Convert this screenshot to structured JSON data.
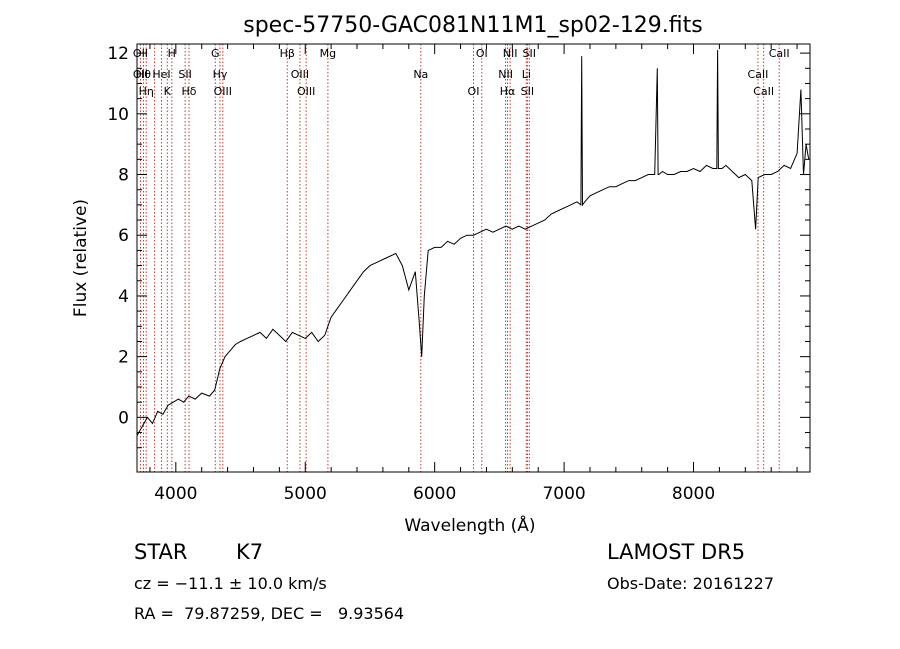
{
  "chart_data": {
    "type": "line",
    "title": "spec-57750-GAC081N11M1_sp02-129.fits",
    "xlabel": "Wavelength (Å)",
    "ylabel": "Flux (relative)",
    "xlim": [
      3700,
      8900
    ],
    "ylim": [
      -1.8,
      12.3
    ],
    "xticks": [
      4000,
      5000,
      6000,
      7000,
      8000
    ],
    "yticks": [
      0,
      2,
      4,
      6,
      8,
      10,
      12
    ],
    "grid": false,
    "series": [
      {
        "x": [
          3700,
          3740,
          3780,
          3820,
          3860,
          3900,
          3940,
          3980,
          4020,
          4060,
          4100,
          4150,
          4200,
          4260,
          4300,
          4340,
          4380,
          4420,
          4460,
          4500,
          4550,
          4600,
          4650,
          4700,
          4750,
          4800,
          4850,
          4900,
          4950,
          5000,
          5050,
          5100,
          5150,
          5200,
          5250,
          5300,
          5350,
          5400,
          5450,
          5500,
          5550,
          5600,
          5650,
          5700,
          5750,
          5800,
          5850,
          5880,
          5900,
          5920,
          5950,
          6000,
          6050,
          6100,
          6150,
          6200,
          6250,
          6300,
          6350,
          6400,
          6450,
          6500,
          6550,
          6600,
          6650,
          6700,
          6750,
          6800,
          6850,
          6900,
          6950,
          7000,
          7050,
          7100,
          7130,
          7136,
          7142,
          7160,
          7200,
          7250,
          7300,
          7350,
          7400,
          7450,
          7500,
          7550,
          7600,
          7650,
          7700,
          7720,
          7726,
          7732,
          7760,
          7800,
          7850,
          7900,
          7950,
          8000,
          8050,
          8100,
          8150,
          8180,
          8186,
          8192,
          8220,
          8250,
          8300,
          8350,
          8400,
          8450,
          8480,
          8500,
          8550,
          8600,
          8650,
          8700,
          8750,
          8800,
          8830,
          8850,
          8870,
          8890
        ],
        "y": [
          -0.6,
          -0.3,
          0.0,
          -0.2,
          0.2,
          0.1,
          0.4,
          0.5,
          0.6,
          0.5,
          0.7,
          0.6,
          0.8,
          0.7,
          0.9,
          1.6,
          2.0,
          2.2,
          2.4,
          2.5,
          2.6,
          2.7,
          2.8,
          2.6,
          2.9,
          2.7,
          2.5,
          2.8,
          2.7,
          2.6,
          2.8,
          2.5,
          2.7,
          3.3,
          3.6,
          3.9,
          4.2,
          4.5,
          4.8,
          5.0,
          5.1,
          5.2,
          5.3,
          5.4,
          5.0,
          4.2,
          4.8,
          3.2,
          2.0,
          4.0,
          5.5,
          5.6,
          5.6,
          5.8,
          5.7,
          5.9,
          6.0,
          6.0,
          6.1,
          6.2,
          6.1,
          6.2,
          6.3,
          6.2,
          6.3,
          6.2,
          6.3,
          6.4,
          6.5,
          6.7,
          6.8,
          6.9,
          7.0,
          7.1,
          7.0,
          11.9,
          7.0,
          7.1,
          7.3,
          7.4,
          7.5,
          7.6,
          7.6,
          7.7,
          7.8,
          7.8,
          7.9,
          8.0,
          8.0,
          11.5,
          8.0,
          8.0,
          8.1,
          8.0,
          8.0,
          8.1,
          8.1,
          8.2,
          8.1,
          8.3,
          8.2,
          8.2,
          12.1,
          8.2,
          8.2,
          8.3,
          8.1,
          7.9,
          8.0,
          7.8,
          6.2,
          7.9,
          8.0,
          8.0,
          8.1,
          8.3,
          8.2,
          8.7,
          10.8,
          8.0,
          9.0,
          8.5
        ]
      }
    ],
    "line_markers": [
      {
        "w": 3727,
        "labels": [
          "OII",
          "OII"
        ]
      },
      {
        "w": 3750,
        "labels": [
          "Hθ"
        ]
      },
      {
        "w": 3771,
        "labels": [
          "Hη"
        ]
      },
      {
        "w": 3836,
        "labels": []
      },
      {
        "w": 3889,
        "labels": [
          "HeI"
        ]
      },
      {
        "w": 3934,
        "labels": [
          "K"
        ]
      },
      {
        "w": 3969,
        "labels": [
          "H"
        ]
      },
      {
        "w": 4072,
        "labels": [
          "SII"
        ]
      },
      {
        "w": 4102,
        "labels": [
          "Hδ"
        ]
      },
      {
        "w": 4305,
        "labels": [
          "G"
        ]
      },
      {
        "w": 4341,
        "labels": [
          "Hγ"
        ]
      },
      {
        "w": 4363,
        "labels": [
          "OIII"
        ]
      },
      {
        "w": 4861,
        "labels": [
          "Hβ"
        ]
      },
      {
        "w": 4959,
        "labels": [
          "OIII"
        ]
      },
      {
        "w": 5007,
        "labels": [
          "OIII"
        ]
      },
      {
        "w": 5175,
        "labels": [
          "Mg"
        ]
      },
      {
        "w": 5893,
        "labels": [
          "Na"
        ]
      },
      {
        "w": 6300,
        "labels": [
          "OI"
        ]
      },
      {
        "w": 6364,
        "labels": [
          "OI"
        ]
      },
      {
        "w": 6548,
        "labels": [
          "NII"
        ]
      },
      {
        "w": 6563,
        "labels": [
          "Hα"
        ]
      },
      {
        "w": 6583,
        "labels": [
          "NII"
        ]
      },
      {
        "w": 6708,
        "labels": [
          "Li"
        ]
      },
      {
        "w": 6716,
        "labels": [
          "SII"
        ]
      },
      {
        "w": 6731,
        "labels": [
          "SII"
        ]
      },
      {
        "w": 8498,
        "labels": [
          "CaII"
        ]
      },
      {
        "w": 8542,
        "labels": [
          "CaII"
        ]
      },
      {
        "w": 8662,
        "labels": [
          "CaII"
        ]
      }
    ],
    "marker_color": "#c0392b",
    "line_color": "#000000"
  },
  "info": {
    "class": "STAR",
    "subclass": "K7",
    "survey": "LAMOST DR5",
    "cz_line": "cz = −11.1 ± 10.0 km/s",
    "obs_date": "Obs-Date: 20161227",
    "radec": "RA =  79.87259, DEC =   9.93564"
  }
}
